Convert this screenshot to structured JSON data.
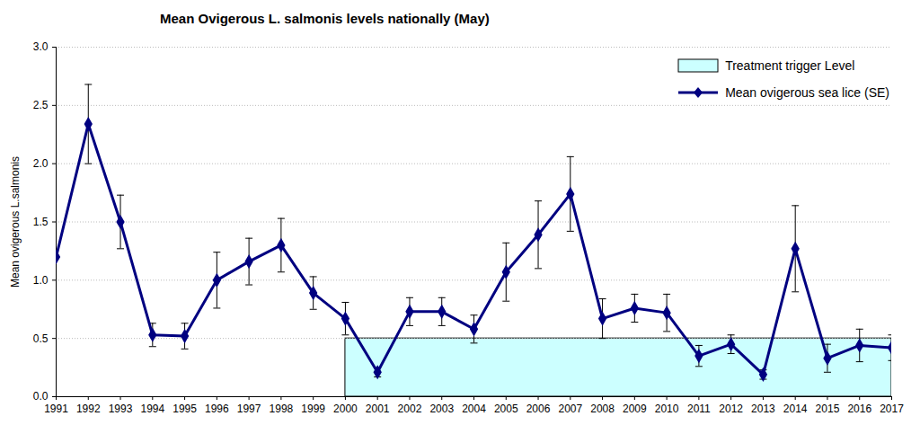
{
  "chart_data": {
    "type": "line",
    "title": "Mean Ovigerous L. salmonis levels nationally (May)",
    "y_label": "Mean ovigerous L.salmonis",
    "x": [
      1991,
      1992,
      1993,
      1994,
      1995,
      1996,
      1997,
      1998,
      1999,
      2000,
      2001,
      2002,
      2003,
      2004,
      2005,
      2006,
      2007,
      2008,
      2009,
      2010,
      2011,
      2012,
      2013,
      2014,
      2015,
      2016,
      2017
    ],
    "series": [
      {
        "name": "Mean ovigerous sea lice (SE)",
        "color": "#000080",
        "marker": "diamond",
        "values": [
          1.2,
          2.34,
          1.5,
          0.53,
          0.52,
          1.0,
          1.16,
          1.3,
          0.89,
          0.67,
          0.21,
          0.73,
          0.73,
          0.58,
          1.07,
          1.39,
          1.74,
          0.67,
          0.76,
          0.72,
          0.35,
          0.45,
          0.19,
          1.27,
          0.33,
          0.44,
          0.42
        ],
        "error": [
          null,
          0.34,
          0.23,
          0.1,
          0.11,
          0.24,
          0.2,
          0.23,
          0.14,
          0.14,
          0.04,
          0.12,
          0.12,
          0.12,
          0.25,
          0.29,
          0.32,
          0.17,
          0.12,
          0.16,
          0.09,
          0.08,
          0.04,
          0.37,
          0.12,
          0.14,
          0.11
        ]
      }
    ],
    "trigger": {
      "name": "Treatment trigger Level",
      "color": "#ccffff",
      "value": 0.5,
      "x": [
        2000,
        2017
      ]
    },
    "xlim": [
      1991,
      2017
    ],
    "xticks": [
      1991,
      1992,
      1993,
      1994,
      1995,
      1996,
      1997,
      1998,
      1999,
      2000,
      2001,
      2002,
      2003,
      2004,
      2005,
      2006,
      2007,
      2008,
      2009,
      2010,
      2011,
      2012,
      2013,
      2014,
      2015,
      2016,
      2017
    ],
    "ylim": [
      0,
      3
    ],
    "yticks": [
      {
        "value": 0,
        "label": "0.0"
      },
      0.5,
      {
        "value": 1,
        "label": "1.0"
      },
      1.5,
      {
        "value": 2,
        "label": "2.0"
      },
      2.5,
      {
        "value": 3,
        "label": "3.0"
      }
    ],
    "grid": true,
    "legend": "top-right"
  }
}
